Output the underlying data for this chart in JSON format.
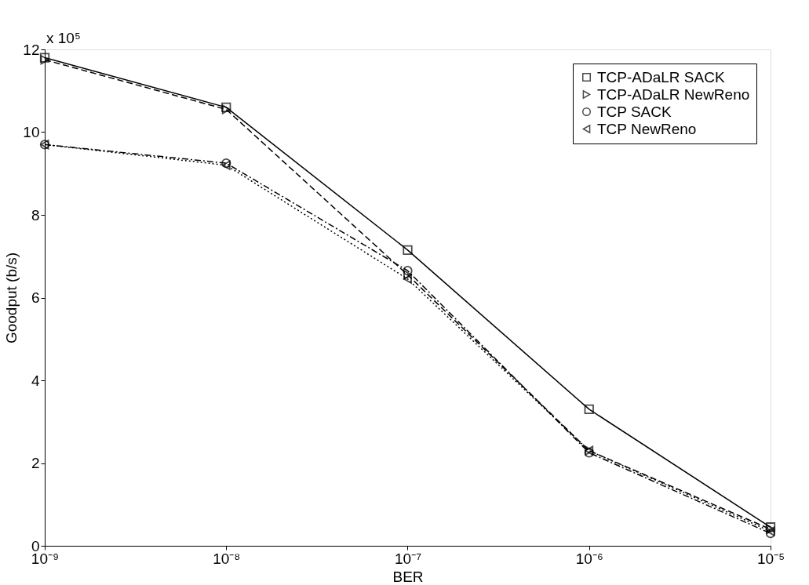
{
  "chart_data": {
    "type": "line",
    "xlabel": "BER",
    "ylabel": "Goodput (b/s)",
    "annotations": [
      "x 10⁵"
    ],
    "x": [
      1e-09,
      1e-08,
      1e-07,
      1e-06,
      1e-05
    ],
    "series": [
      {
        "name": "TCP-ADaLR SACK",
        "color": "#000000",
        "marker": "square",
        "line_style": "solid",
        "values": [
          11.8,
          10.6,
          7.15,
          3.3,
          0.45
        ]
      },
      {
        "name": "TCP-ADaLR NewReno",
        "color": "#000000",
        "marker": "triangle-right",
        "line_style": "dashed",
        "values": [
          11.75,
          10.55,
          6.55,
          2.3,
          0.4
        ]
      },
      {
        "name": "TCP SACK",
        "color": "#000000",
        "marker": "circle",
        "line_style": "dashdot",
        "values": [
          9.7,
          9.25,
          6.65,
          2.25,
          0.3
        ]
      },
      {
        "name": "TCP NewReno",
        "color": "#000000",
        "marker": "triangle-left",
        "line_style": "dotted",
        "values": [
          9.7,
          9.2,
          6.45,
          2.3,
          0.35
        ]
      }
    ],
    "log": "x",
    "xlim": [
      1e-09,
      1e-05
    ],
    "xticks": [
      {
        "value": 1e-09,
        "label": "10⁻⁹"
      },
      {
        "value": 1e-08,
        "label": "10⁻⁸"
      },
      {
        "value": 1e-07,
        "label": "10⁻⁷"
      },
      {
        "value": 1e-06,
        "label": "10⁻⁶"
      },
      {
        "value": 1e-05,
        "label": "10⁻⁵"
      }
    ],
    "ylim": [
      0,
      12
    ],
    "yticks": [
      0,
      2,
      4,
      6,
      8,
      10,
      12
    ],
    "grid": false,
    "legend": "top right"
  }
}
